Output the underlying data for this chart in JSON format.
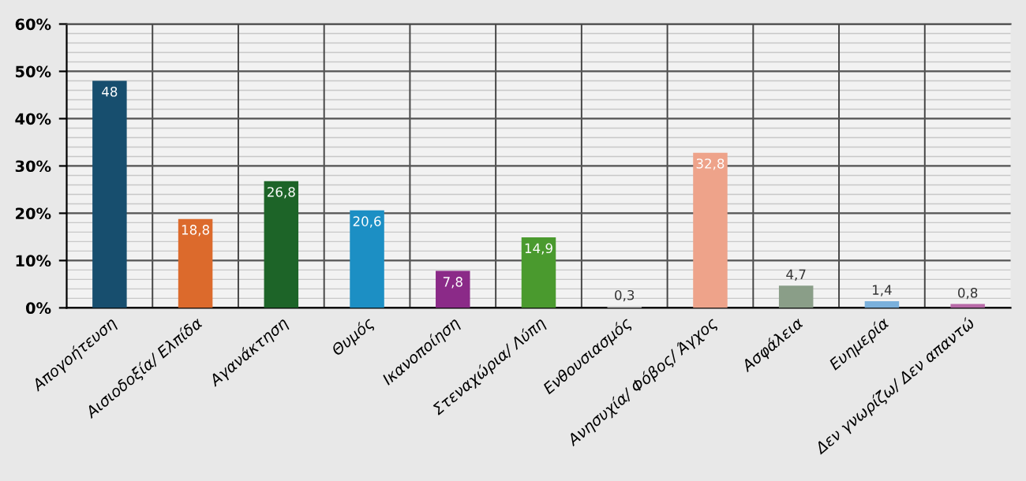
{
  "chart_data": {
    "type": "bar",
    "categories": [
      "Απογοήτευση",
      "Αισιοδοξία/ Ελπίδα",
      "Αγανάκτηση",
      "Θυμός",
      "Ικανοποίηση",
      "Στεναχώρια/ Λύπη",
      "Ενθουσιασμός",
      "Ανησυχία/ Φόβος/ Άγχος",
      "Ασφάλεια",
      "Ευημερία",
      "Δεν γνωρίζω/ Δεν απαντώ"
    ],
    "values": [
      48,
      18.8,
      26.8,
      20.6,
      7.8,
      14.9,
      0.3,
      32.8,
      4.7,
      1.4,
      0.8
    ],
    "value_labels": [
      "48",
      "18,8",
      "26,8",
      "20,6",
      "7,8",
      "14,9",
      "0,3",
      "32,8",
      "4,7",
      "1,4",
      "0,8"
    ],
    "colors": [
      "#174e6e",
      "#dc6a2c",
      "#1d6428",
      "#1c8fc4",
      "#8b2a88",
      "#4a9a2e",
      "#c8c8c8",
      "#eea38a",
      "#8a9e88",
      "#7ab0dc",
      "#b86aa8"
    ],
    "ylim": [
      0,
      60
    ],
    "yticks": [
      {
        "value": 0,
        "label": "0%"
      },
      {
        "value": 10,
        "label": "10%"
      },
      {
        "value": 20,
        "label": "20%"
      },
      {
        "value": 30,
        "label": "30%"
      },
      {
        "value": 40,
        "label": "40%"
      },
      {
        "value": 50,
        "label": "50%"
      },
      {
        "value": 60,
        "label": "60%"
      }
    ],
    "grid": true
  }
}
